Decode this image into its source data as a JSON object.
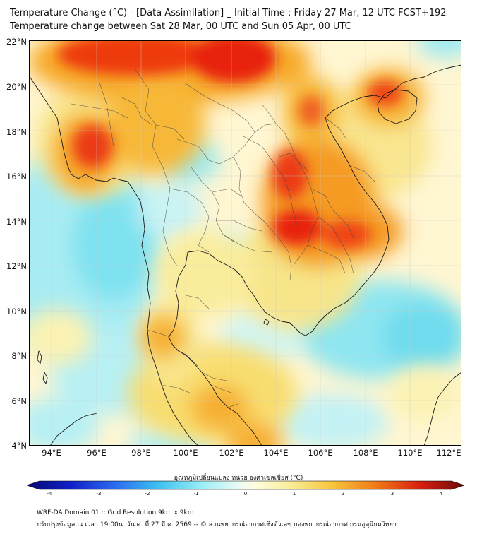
{
  "header": {
    "title_line1": "Temperature Change (°C) - [Data Assimilation] _ Initial Time : Friday 27 Mar, 12 UTC FCST+192",
    "title_line2": "Temperature change between Sat 28 Mar, 00 UTC and Sun 05 Apr, 00 UTC"
  },
  "map": {
    "lat_labels": [
      "22°N",
      "20°N",
      "18°N",
      "16°N",
      "14°N",
      "12°N",
      "10°N",
      "8°N",
      "6°N",
      "4°N"
    ],
    "lon_labels": [
      "94°E",
      "96°E",
      "98°E",
      "100°E",
      "102°E",
      "104°E",
      "106°E",
      "108°E",
      "110°E",
      "112°E"
    ]
  },
  "colorbar": {
    "title": "อุณหภูมิเปลี่ยนแปลง หน่วย องศาเซลเซียส (°C)",
    "ticks": [
      "-4",
      "-3",
      "-2",
      "-1",
      "0",
      "1",
      "2",
      "3",
      "4"
    ]
  },
  "footer": {
    "line1": "WRF-DA Domain 01 :: Grid Resolution 9km x 9km",
    "line2": "ปรับปรุงข้อมูล ณ เวลา 19:00น. วัน ศ. ที่ 27 มี.ค. 2569 -- © ส่วนพยากรณ์อากาศเชิงตัวเลข กองพยากรณ์อากาศ กรมอุตุนิยมวิทยา"
  },
  "colors": {
    "warm_strong": "#e8120c",
    "warm": "#f5a020",
    "mild": "#f7e88a",
    "neutral": "#fffbe0",
    "cool": "#bff2f5",
    "cold": "#5fd8ee"
  }
}
